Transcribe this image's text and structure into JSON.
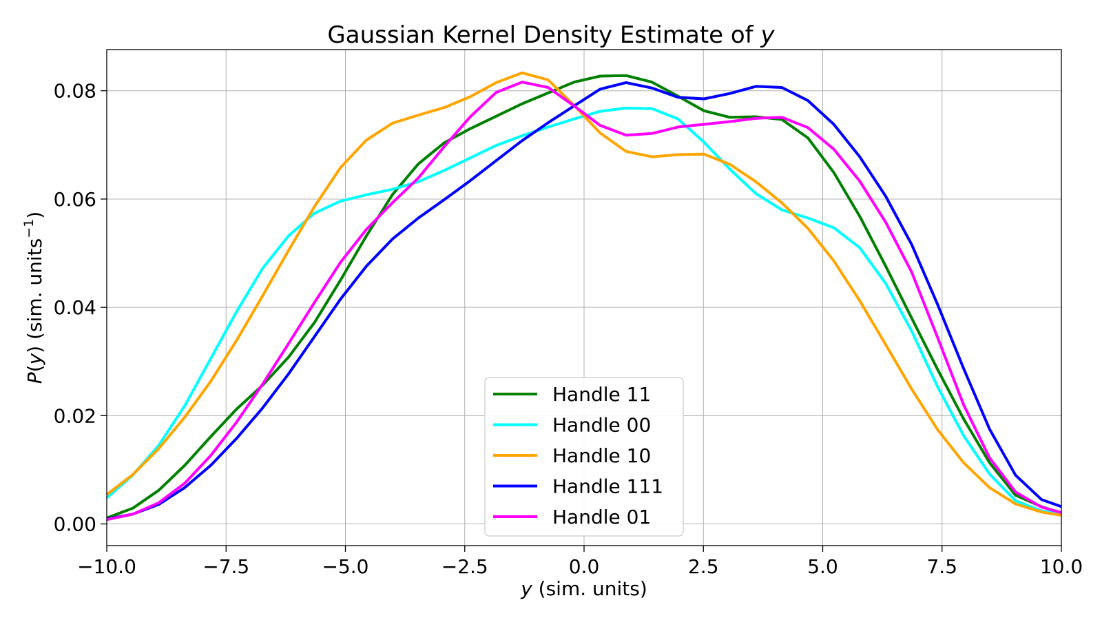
{
  "chart_data": {
    "type": "line",
    "title_prefix": "Gaussian Kernel Density Estimate of ",
    "title_var": "y",
    "xlabel_var": "y",
    "xlabel_rest": " (sim. units)",
    "ylabel_var_p": "P",
    "ylabel_paren_open": "(",
    "ylabel_var_y": "y",
    "ylabel_rest": ") (sim. units",
    "ylabel_sup": "−1",
    "ylabel_close": ")",
    "xlim": [
      -10,
      10
    ],
    "ylim": [
      -0.004,
      0.0876
    ],
    "xticks": [
      -10,
      -7.5,
      -5,
      -2.5,
      0,
      2.5,
      5,
      7.5,
      10
    ],
    "xtick_labels": [
      "−10.0",
      "−7.5",
      "−5.0",
      "−2.5",
      "0.0",
      "2.5",
      "5.0",
      "7.5",
      "10.0"
    ],
    "yticks": [
      0,
      0.02,
      0.04,
      0.06,
      0.08
    ],
    "ytick_labels": [
      "0.00",
      "0.02",
      "0.04",
      "0.06",
      "0.08"
    ],
    "grid": true,
    "legend_position": "lower-center",
    "x": [
      -10.0,
      -9.456,
      -8.912,
      -8.368,
      -7.824,
      -7.28,
      -6.736,
      -6.192,
      -5.648,
      -5.104,
      -4.56,
      -4.016,
      -3.472,
      -2.928,
      -2.384,
      -1.84,
      -1.296,
      -0.752,
      -0.208,
      0.336,
      0.88,
      1.424,
      1.968,
      2.512,
      3.056,
      3.6,
      4.144,
      4.688,
      5.232,
      5.776,
      6.32,
      6.864,
      7.408,
      7.952,
      8.496,
      9.04,
      9.584,
      10.0
    ],
    "series": [
      {
        "name": "Handle 11",
        "color": "#008000",
        "values": [
          0.0011,
          0.0029,
          0.0062,
          0.0108,
          0.0161,
          0.0212,
          0.0256,
          0.0308,
          0.0372,
          0.045,
          0.0532,
          0.0608,
          0.0665,
          0.0704,
          0.073,
          0.0753,
          0.0776,
          0.0796,
          0.0816,
          0.0827,
          0.0828,
          0.0816,
          0.079,
          0.0763,
          0.0751,
          0.0752,
          0.0747,
          0.0713,
          0.0649,
          0.0568,
          0.0476,
          0.038,
          0.0285,
          0.0194,
          0.0113,
          0.0053,
          0.0032,
          0.002
        ]
      },
      {
        "name": "Handle 00",
        "color": "#00ffff",
        "values": [
          0.0048,
          0.009,
          0.0145,
          0.0218,
          0.0305,
          0.0392,
          0.0472,
          0.0532,
          0.0574,
          0.0596,
          0.0608,
          0.0618,
          0.0632,
          0.0653,
          0.0676,
          0.0699,
          0.0717,
          0.0733,
          0.0748,
          0.0762,
          0.0768,
          0.0767,
          0.0748,
          0.0705,
          0.0655,
          0.061,
          0.058,
          0.0565,
          0.0547,
          0.051,
          0.0444,
          0.0356,
          0.0253,
          0.0163,
          0.0092,
          0.0043,
          0.0024,
          0.0018
        ]
      },
      {
        "name": "Handle 10",
        "color": "#ffa500",
        "values": [
          0.0054,
          0.0091,
          0.0139,
          0.0197,
          0.0263,
          0.0339,
          0.0421,
          0.0505,
          0.0586,
          0.0658,
          0.0709,
          0.074,
          0.0755,
          0.0769,
          0.0789,
          0.0815,
          0.0833,
          0.082,
          0.0773,
          0.0722,
          0.0688,
          0.0678,
          0.0682,
          0.0683,
          0.0664,
          0.0632,
          0.0593,
          0.0546,
          0.0486,
          0.0412,
          0.0331,
          0.0249,
          0.0174,
          0.0113,
          0.0067,
          0.0037,
          0.0022,
          0.0016
        ]
      },
      {
        "name": "Handle 111",
        "color": "#0000ff",
        "values": [
          0.0009,
          0.0018,
          0.0036,
          0.0067,
          0.0108,
          0.0158,
          0.0214,
          0.0277,
          0.0346,
          0.0415,
          0.0476,
          0.0526,
          0.0565,
          0.0599,
          0.0634,
          0.0671,
          0.0708,
          0.0741,
          0.0772,
          0.0803,
          0.0815,
          0.0805,
          0.0788,
          0.0785,
          0.0795,
          0.0808,
          0.0806,
          0.0782,
          0.0738,
          0.0678,
          0.0605,
          0.0516,
          0.0405,
          0.0287,
          0.0175,
          0.009,
          0.0045,
          0.0032
        ]
      },
      {
        "name": "Handle 01",
        "color": "#ff00ff",
        "values": [
          0.0008,
          0.0018,
          0.0039,
          0.0075,
          0.0126,
          0.0188,
          0.0258,
          0.0333,
          0.0409,
          0.0483,
          0.0544,
          0.0593,
          0.0639,
          0.0697,
          0.0752,
          0.0797,
          0.0816,
          0.0806,
          0.0772,
          0.0736,
          0.0718,
          0.0721,
          0.0733,
          0.0738,
          0.0743,
          0.0749,
          0.0751,
          0.0732,
          0.0692,
          0.0633,
          0.0557,
          0.0465,
          0.0344,
          0.022,
          0.0122,
          0.0059,
          0.0031,
          0.0021
        ]
      }
    ]
  }
}
